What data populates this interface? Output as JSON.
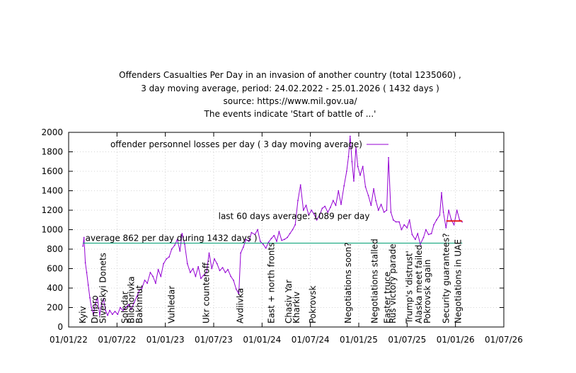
{
  "chart_data": {
    "type": "line",
    "title_lines": [
      "Offenders Casualties Per Day in an invasion of another country (total  1235060) ,",
      "3 day moving average, period: 24.02.2022 - 25.01.2026 ( 1432 days )",
      "source: https://www.mil.gov.ua/",
      "The events indicate 'Start of battle of ...'"
    ],
    "xlabel": "",
    "ylabel": "",
    "grid": true,
    "legend_position": "top-left",
    "xlim": [
      "2022-01-01",
      "2026-07-01"
    ],
    "ylim": [
      0,
      2000
    ],
    "x_tick_labels": [
      "01/01/22",
      "01/07/22",
      "01/01/23",
      "01/07/23",
      "01/01/24",
      "01/07/24",
      "01/01/25",
      "01/07/25",
      "01/01/26",
      "01/07/26"
    ],
    "y_tick_labels": [
      "0",
      "200",
      "400",
      "600",
      "800",
      "1000",
      "1200",
      "1400",
      "1600",
      "1800",
      "2000"
    ],
    "series": [
      {
        "name": "offender personnel losses per day ( 3 day moving average)",
        "color": "#9400d3",
        "points": [
          [
            "2022-02-24",
            830
          ],
          [
            "2022-02-28",
            920
          ],
          [
            "2022-03-05",
            660
          ],
          [
            "2022-03-10",
            560
          ],
          [
            "2022-03-16",
            430
          ],
          [
            "2022-03-22",
            300
          ],
          [
            "2022-03-28",
            200
          ],
          [
            "2022-04-05",
            130
          ],
          [
            "2022-04-12",
            240
          ],
          [
            "2022-04-20",
            300
          ],
          [
            "2022-04-28",
            120
          ],
          [
            "2022-05-05",
            230
          ],
          [
            "2022-05-12",
            290
          ],
          [
            "2022-05-20",
            170
          ],
          [
            "2022-05-28",
            120
          ],
          [
            "2022-06-05",
            170
          ],
          [
            "2022-06-15",
            130
          ],
          [
            "2022-06-25",
            160
          ],
          [
            "2022-07-05",
            130
          ],
          [
            "2022-07-15",
            200
          ],
          [
            "2022-07-25",
            170
          ],
          [
            "2022-08-05",
            200
          ],
          [
            "2022-08-15",
            230
          ],
          [
            "2022-08-25",
            180
          ],
          [
            "2022-09-05",
            250
          ],
          [
            "2022-09-15",
            310
          ],
          [
            "2022-09-25",
            380
          ],
          [
            "2022-10-05",
            400
          ],
          [
            "2022-10-15",
            480
          ],
          [
            "2022-10-25",
            450
          ],
          [
            "2022-11-05",
            560
          ],
          [
            "2022-11-15",
            520
          ],
          [
            "2022-11-25",
            450
          ],
          [
            "2022-12-05",
            590
          ],
          [
            "2022-12-15",
            520
          ],
          [
            "2022-12-25",
            650
          ],
          [
            "2023-01-05",
            700
          ],
          [
            "2023-01-15",
            720
          ],
          [
            "2023-01-25",
            800
          ],
          [
            "2023-02-05",
            840
          ],
          [
            "2023-02-15",
            900
          ],
          [
            "2023-02-25",
            780
          ],
          [
            "2023-03-05",
            960
          ],
          [
            "2023-03-15",
            850
          ],
          [
            "2023-03-25",
            650
          ],
          [
            "2023-04-05",
            560
          ],
          [
            "2023-04-15",
            600
          ],
          [
            "2023-04-25",
            520
          ],
          [
            "2023-05-05",
            620
          ],
          [
            "2023-05-15",
            500
          ],
          [
            "2023-05-25",
            530
          ],
          [
            "2023-06-05",
            560
          ],
          [
            "2023-06-15",
            760
          ],
          [
            "2023-06-25",
            600
          ],
          [
            "2023-07-05",
            700
          ],
          [
            "2023-07-15",
            650
          ],
          [
            "2023-07-25",
            580
          ],
          [
            "2023-08-05",
            610
          ],
          [
            "2023-08-15",
            560
          ],
          [
            "2023-08-25",
            590
          ],
          [
            "2023-09-05",
            520
          ],
          [
            "2023-09-15",
            480
          ],
          [
            "2023-09-25",
            390
          ],
          [
            "2023-10-05",
            340
          ],
          [
            "2023-10-12",
            760
          ],
          [
            "2023-10-22",
            820
          ],
          [
            "2023-11-01",
            900
          ],
          [
            "2023-11-12",
            880
          ],
          [
            "2023-11-22",
            970
          ],
          [
            "2023-12-05",
            950
          ],
          [
            "2023-12-15",
            1000
          ],
          [
            "2023-12-25",
            880
          ],
          [
            "2024-01-05",
            850
          ],
          [
            "2024-01-15",
            810
          ],
          [
            "2024-01-25",
            870
          ],
          [
            "2024-02-05",
            910
          ],
          [
            "2024-02-15",
            940
          ],
          [
            "2024-02-25",
            880
          ],
          [
            "2024-03-05",
            980
          ],
          [
            "2024-03-15",
            890
          ],
          [
            "2024-03-25",
            900
          ],
          [
            "2024-04-05",
            920
          ],
          [
            "2024-04-15",
            960
          ],
          [
            "2024-04-25",
            1000
          ],
          [
            "2024-05-05",
            1050
          ],
          [
            "2024-05-15",
            1300
          ],
          [
            "2024-05-25",
            1460
          ],
          [
            "2024-06-05",
            1200
          ],
          [
            "2024-06-15",
            1250
          ],
          [
            "2024-06-25",
            1150
          ],
          [
            "2024-07-05",
            1200
          ],
          [
            "2024-07-15",
            1160
          ],
          [
            "2024-07-25",
            1100
          ],
          [
            "2024-08-05",
            1150
          ],
          [
            "2024-08-15",
            1220
          ],
          [
            "2024-08-25",
            1240
          ],
          [
            "2024-09-05",
            1180
          ],
          [
            "2024-09-15",
            1230
          ],
          [
            "2024-09-25",
            1300
          ],
          [
            "2024-10-05",
            1250
          ],
          [
            "2024-10-15",
            1400
          ],
          [
            "2024-10-25",
            1260
          ],
          [
            "2024-11-05",
            1450
          ],
          [
            "2024-11-15",
            1600
          ],
          [
            "2024-11-22",
            1750
          ],
          [
            "2024-11-28",
            1960
          ],
          [
            "2024-12-05",
            1700
          ],
          [
            "2024-12-12",
            1500
          ],
          [
            "2024-12-20",
            1850
          ],
          [
            "2024-12-27",
            1650
          ],
          [
            "2025-01-05",
            1560
          ],
          [
            "2025-01-15",
            1650
          ],
          [
            "2025-01-25",
            1440
          ],
          [
            "2025-02-05",
            1350
          ],
          [
            "2025-02-15",
            1250
          ],
          [
            "2025-02-25",
            1420
          ],
          [
            "2025-03-05",
            1300
          ],
          [
            "2025-03-15",
            1200
          ],
          [
            "2025-03-25",
            1260
          ],
          [
            "2025-04-05",
            1180
          ],
          [
            "2025-04-15",
            1200
          ],
          [
            "2025-04-22",
            1740
          ],
          [
            "2025-05-01",
            1180
          ],
          [
            "2025-05-10",
            1100
          ],
          [
            "2025-05-20",
            1080
          ],
          [
            "2025-06-01",
            1080
          ],
          [
            "2025-06-10",
            1000
          ],
          [
            "2025-06-20",
            1050
          ],
          [
            "2025-07-01",
            1020
          ],
          [
            "2025-07-10",
            1100
          ],
          [
            "2025-07-20",
            950
          ],
          [
            "2025-08-01",
            900
          ],
          [
            "2025-08-10",
            960
          ],
          [
            "2025-08-20",
            850
          ],
          [
            "2025-09-01",
            920
          ],
          [
            "2025-09-10",
            1000
          ],
          [
            "2025-09-20",
            950
          ],
          [
            "2025-10-01",
            960
          ],
          [
            "2025-10-10",
            1050
          ],
          [
            "2025-10-20",
            1100
          ],
          [
            "2025-11-01",
            1150
          ],
          [
            "2025-11-08",
            1380
          ],
          [
            "2025-11-15",
            1180
          ],
          [
            "2025-11-25",
            1020
          ],
          [
            "2025-12-05",
            1200
          ],
          [
            "2025-12-15",
            1100
          ],
          [
            "2025-12-25",
            1050
          ],
          [
            "2026-01-05",
            1200
          ],
          [
            "2026-01-15",
            1100
          ],
          [
            "2026-01-25",
            1080
          ]
        ]
      },
      {
        "name": "average 862 per day during 1432 days )",
        "color": "#009e73",
        "points": [
          [
            "2022-02-24",
            862
          ],
          [
            "2026-01-25",
            862
          ]
        ]
      },
      {
        "name": "last  60 days average: 1089 per day",
        "color": "#e41a1c",
        "points": [
          [
            "2025-11-26",
            1089
          ],
          [
            "2026-01-25",
            1089
          ]
        ]
      }
    ],
    "annotations": [
      {
        "text": "average 862 per day during 1432 days )",
        "x": "2022-03-05",
        "y": 862,
        "color": "#000000"
      },
      {
        "text": "last  60 days average: 1089 per day",
        "x": "2023-07-20",
        "y": 1089,
        "color": "#e41a1c"
      }
    ],
    "events": [
      {
        "label": "Kyiv",
        "date": "2022-02-24"
      },
      {
        "label": "Dnipro",
        "date": "2022-04-10"
      },
      {
        "label": "Siverskyi Donets",
        "date": "2022-05-10"
      },
      {
        "label": "Soledar",
        "date": "2022-08-01"
      },
      {
        "label": "Bilohorivka",
        "date": "2022-08-25"
      },
      {
        "label": "Bakhmut",
        "date": "2022-09-25"
      },
      {
        "label": "Vuhledar",
        "date": "2023-01-25"
      },
      {
        "label": "Ukr counteroff.",
        "date": "2023-06-04"
      },
      {
        "label": "Avdiivka",
        "date": "2023-10-10"
      },
      {
        "label": "East + north fronts",
        "date": "2024-02-05"
      },
      {
        "label": "Chasiv Yar",
        "date": "2024-04-10"
      },
      {
        "label": "Kharkiv",
        "date": "2024-05-10"
      },
      {
        "label": "Pokrovsk",
        "date": "2024-07-10"
      },
      {
        "label": "Negotiations soon?",
        "date": "2024-11-20"
      },
      {
        "label": "Negotiations stalled",
        "date": "2025-03-01"
      },
      {
        "label": "Easter truce",
        "date": "2025-04-18"
      },
      {
        "label": "Rus victory parade",
        "date": "2025-05-08"
      },
      {
        "label": "Trump's 'distrust'",
        "date": "2025-07-10"
      },
      {
        "label": "Alaska meet failed",
        "date": "2025-08-15"
      },
      {
        "label": "Pokrovsk again",
        "date": "2025-09-15"
      },
      {
        "label": "Security guarantees?",
        "date": "2025-11-25"
      },
      {
        "label": "Negotiations in UAE",
        "date": "2026-01-10"
      }
    ]
  }
}
